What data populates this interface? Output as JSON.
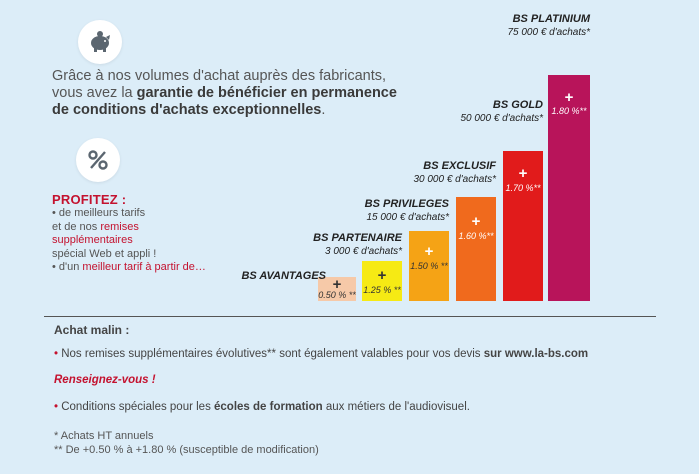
{
  "icons": {
    "top": "piggy-bank-icon",
    "middle": "percent-icon"
  },
  "intro": {
    "pre": "Grâce à nos volumes d'achat auprès des fabricants, vous avez la ",
    "bold": "garantie de bénéficier en permanence de conditions d'achats exceptionnelles",
    "post": "."
  },
  "profitez": {
    "title": "PROFITEZ :",
    "l1": "• de meilleurs tarifs",
    "l2a": "et de nos ",
    "l2b": "remises",
    "l3": "supplémentaires",
    "l4": "spécial Web et appli !",
    "l5a": "• d'un ",
    "l5b": "meilleur tarif à partir de…"
  },
  "levels": [
    {
      "name": "BS AVANTAGES",
      "amount": "",
      "plus": "+",
      "pct": "0.50 % **",
      "color": "#f6c9a8"
    },
    {
      "name": "BS PARTENAIRE",
      "amount": "3 000 € d'achats*",
      "plus": "+",
      "pct": "1.25 % **",
      "color": "#f6ea14"
    },
    {
      "name": "BS PRIVILEGES",
      "amount": "15 000 € d'achats*",
      "plus": "+",
      "pct": "1.50 % **",
      "color": "#f5a315"
    },
    {
      "name": "BS EXCLUSIF",
      "amount": "30 000 € d'achats*",
      "plus": "+",
      "pct": "1.60 %**",
      "color": "#f06a1d"
    },
    {
      "name": "BS GOLD",
      "amount": "50 000 € d'achats*",
      "plus": "+",
      "pct": "1.70 %**",
      "color": "#e11b1b"
    },
    {
      "name": "BS PLATINIUM",
      "amount": "75 000 € d'achats*",
      "plus": "+",
      "pct": "1.80 %**",
      "color": "#b8145a"
    }
  ],
  "achat": {
    "title": "Achat malin :",
    "line1": "Nos remises supplémentaires évolutives** sont également valables pour vos devis ",
    "line1_bold": "sur www.la-bs.com",
    "renseignez": "Renseignez-vous !",
    "line3a": "Conditions spéciales pour les ",
    "line3b": "écoles de formation",
    "line3c": " aux métiers de l'audiovisuel.",
    "foot1": "* Achats HT annuels",
    "foot2": "** De +0.50 % à +1.80 % (susceptible de modification)"
  }
}
